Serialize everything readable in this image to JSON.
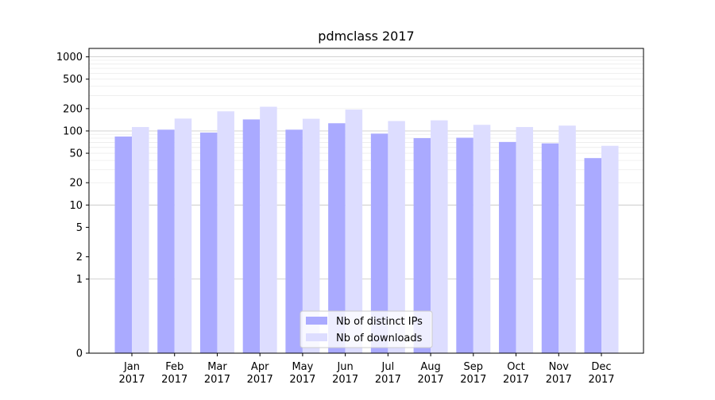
{
  "chart_data": {
    "type": "bar",
    "title": "pdmclass 2017",
    "xlabel": "",
    "ylabel": "",
    "yscale": "symlog",
    "ylim": [
      0,
      1300
    ],
    "yticks": [
      0,
      1,
      2,
      5,
      10,
      20,
      50,
      100,
      200,
      500,
      1000
    ],
    "grid": true,
    "legend_position": "bottom-center",
    "categories": [
      [
        "Jan",
        "2017"
      ],
      [
        "Feb",
        "2017"
      ],
      [
        "Mar",
        "2017"
      ],
      [
        "Apr",
        "2017"
      ],
      [
        "May",
        "2017"
      ],
      [
        "Jun",
        "2017"
      ],
      [
        "Jul",
        "2017"
      ],
      [
        "Aug",
        "2017"
      ],
      [
        "Sep",
        "2017"
      ],
      [
        "Oct",
        "2017"
      ],
      [
        "Nov",
        "2017"
      ],
      [
        "Dec",
        "2017"
      ]
    ],
    "series": [
      {
        "name": "Nb of distinct IPs",
        "color": "#aaaaff",
        "values": [
          84,
          104,
          95,
          143,
          104,
          127,
          92,
          80,
          81,
          71,
          68,
          43
        ]
      },
      {
        "name": "Nb of downloads",
        "color": "#ddddff",
        "values": [
          113,
          147,
          184,
          212,
          146,
          194,
          136,
          139,
          121,
          113,
          118,
          63
        ]
      }
    ]
  }
}
